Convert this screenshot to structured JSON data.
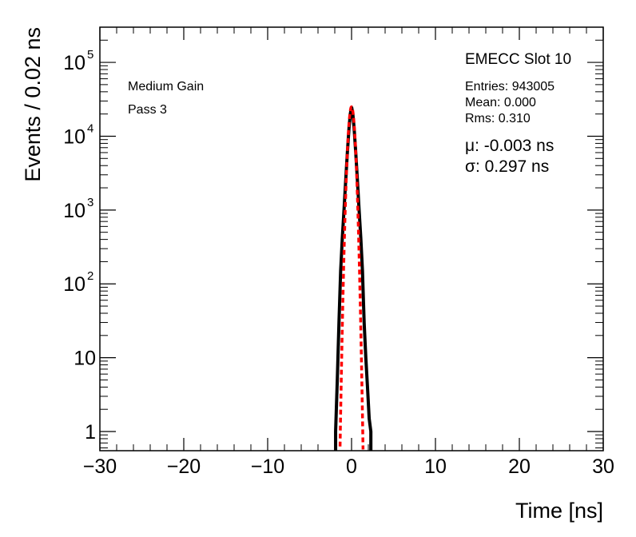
{
  "chart_data": {
    "type": "histogram",
    "title": "EMECC Slot 10",
    "xlabel": "Time [ns]",
    "ylabel": "Events / 0.02 ns",
    "xlim": [
      -30,
      30
    ],
    "ylim": [
      0.55,
      300000
    ],
    "yscale": "log",
    "grid": false,
    "x_ticks": [
      {
        "value": -30,
        "label": "−30"
      },
      {
        "value": -20,
        "label": "−20"
      },
      {
        "value": -10,
        "label": "−10"
      },
      {
        "value": 0,
        "label": "0"
      },
      {
        "value": 10,
        "label": "10"
      },
      {
        "value": 20,
        "label": "20"
      },
      {
        "value": 30,
        "label": "30"
      }
    ],
    "y_ticks": [
      {
        "value": 1,
        "base": "1",
        "exp": ""
      },
      {
        "value": 10,
        "base": "10",
        "exp": ""
      },
      {
        "value": 100,
        "base": "10",
        "exp": "2"
      },
      {
        "value": 1000,
        "base": "10",
        "exp": "3"
      },
      {
        "value": 10000,
        "base": "10",
        "exp": "4"
      },
      {
        "value": 100000,
        "base": "10",
        "exp": "5"
      }
    ],
    "labels": [
      "Medium Gain",
      "Pass 3"
    ],
    "stats": {
      "entries": "Entries: 943005",
      "mean": "Mean: 0.000",
      "rms": "Rms: 0.310"
    },
    "fit_results": {
      "mu": "μ: -0.003 ns",
      "sigma": "σ: 0.297 ns"
    },
    "histogram": {
      "color": "#000000",
      "x": [
        -1.9,
        -1.7,
        -1.5,
        -1.3,
        -1.1,
        -0.9,
        -0.7,
        -0.5,
        -0.3,
        -0.15,
        0.0,
        0.15,
        0.3,
        0.5,
        0.7,
        0.9,
        1.1,
        1.3,
        1.5,
        1.7,
        1.9,
        2.1,
        2.3
      ],
      "y": [
        1,
        5,
        30,
        150,
        420,
        1000,
        2500,
        6000,
        13000,
        20000,
        25000,
        20000,
        13000,
        6000,
        2500,
        1000,
        420,
        150,
        30,
        10,
        4,
        1.5,
        1
      ]
    },
    "fit": {
      "color": "#ff0000",
      "mu": -0.003,
      "sigma": 0.297,
      "amplitude": 25000
    }
  }
}
